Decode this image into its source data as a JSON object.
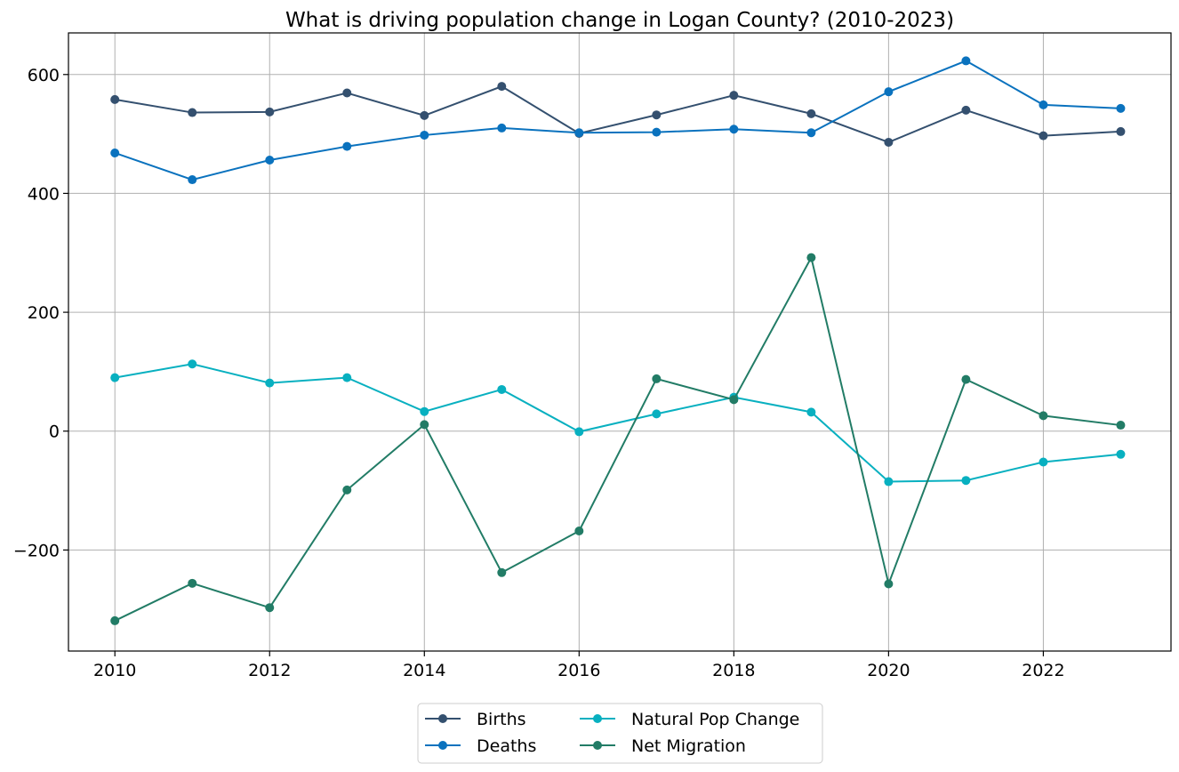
{
  "chart_data": {
    "type": "line",
    "title": "What is driving population change in Logan County? (2010-2023)",
    "xlabel": "",
    "ylabel": "",
    "x": [
      2010,
      2011,
      2012,
      2013,
      2014,
      2015,
      2016,
      2017,
      2018,
      2019,
      2020,
      2021,
      2022,
      2023
    ],
    "xlim": [
      2009.4,
      2023.65
    ],
    "ylim": [
      -370,
      670
    ],
    "x_ticks": [
      2010,
      2012,
      2014,
      2016,
      2018,
      2020,
      2022
    ],
    "y_ticks": [
      -200,
      0,
      200,
      400,
      600
    ],
    "x_tick_labels": [
      "2010",
      "2012",
      "2014",
      "2016",
      "2018",
      "2020",
      "2022"
    ],
    "y_tick_labels": [
      "−200",
      "0",
      "200",
      "400",
      "600"
    ],
    "grid": true,
    "legend_position": "bottom-center-outside",
    "series": [
      {
        "name": "Births",
        "color": "#34506f",
        "values": [
          558,
          536,
          537,
          569,
          531,
          580,
          501,
          532,
          565,
          534,
          486,
          540,
          497,
          504
        ]
      },
      {
        "name": "Deaths",
        "color": "#0a72be",
        "values": [
          468,
          423,
          456,
          479,
          498,
          510,
          502,
          503,
          508,
          502,
          571,
          623,
          549,
          543
        ]
      },
      {
        "name": "Natural Pop Change",
        "color": "#08b0c0",
        "values": [
          90,
          113,
          81,
          90,
          33,
          70,
          -1,
          29,
          57,
          32,
          -85,
          -83,
          -52,
          -39
        ]
      },
      {
        "name": "Net Migration",
        "color": "#227c66",
        "values": [
          -319,
          -256,
          -297,
          -99,
          11,
          -238,
          -168,
          88,
          53,
          292,
          -257,
          87,
          26,
          10
        ]
      }
    ]
  }
}
